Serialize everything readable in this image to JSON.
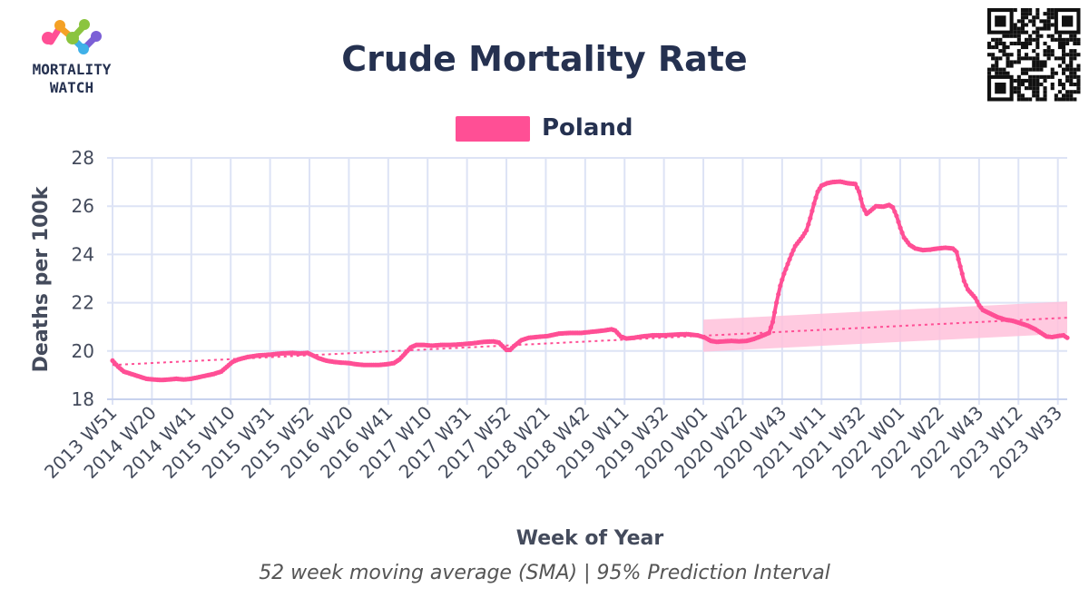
{
  "brand": {
    "line1": "MORTALITY",
    "line2": "WATCH",
    "logo_icon": "molecule-logo-icon",
    "qr_icon": "qr-code-icon"
  },
  "colors": {
    "series": "#ff4f95",
    "band": "#ffc1da",
    "grid": "#dde3f5",
    "axis": "#c8d2ee",
    "title": "#253150"
  },
  "chart_data": {
    "type": "line",
    "title": "Crude Mortality Rate",
    "subtitle": "52 week moving average (SMA) | 95% Prediction Interval",
    "xlabel": "Week of Year",
    "ylabel": "Deaths per 100k",
    "ylim": [
      18,
      28
    ],
    "yticks": [
      18,
      20,
      22,
      24,
      26,
      28
    ],
    "legend": [
      {
        "name": "Poland",
        "color": "#ff4f95"
      }
    ],
    "x_range_weeks": [
      0,
      509
    ],
    "xticks": [
      {
        "week": 0,
        "label": "2013 W51"
      },
      {
        "week": 21,
        "label": "2014 W20"
      },
      {
        "week": 42,
        "label": "2014 W41"
      },
      {
        "week": 63,
        "label": "2015 W10"
      },
      {
        "week": 84,
        "label": "2015 W31"
      },
      {
        "week": 105,
        "label": "2015 W52"
      },
      {
        "week": 126,
        "label": "2016 W20"
      },
      {
        "week": 147,
        "label": "2016 W41"
      },
      {
        "week": 168,
        "label": "2017 W10"
      },
      {
        "week": 189,
        "label": "2017 W31"
      },
      {
        "week": 210,
        "label": "2017 W52"
      },
      {
        "week": 231,
        "label": "2018 W21"
      },
      {
        "week": 252,
        "label": "2018 W42"
      },
      {
        "week": 273,
        "label": "2019 W11"
      },
      {
        "week": 294,
        "label": "2019 W32"
      },
      {
        "week": 315,
        "label": "2020 W01"
      },
      {
        "week": 336,
        "label": "2020 W22"
      },
      {
        "week": 357,
        "label": "2020 W43"
      },
      {
        "week": 378,
        "label": "2021 W11"
      },
      {
        "week": 399,
        "label": "2021 W32"
      },
      {
        "week": 420,
        "label": "2022 W01"
      },
      {
        "week": 441,
        "label": "2022 W22"
      },
      {
        "week": 462,
        "label": "2022 W43"
      },
      {
        "week": 483,
        "label": "2023 W12"
      },
      {
        "week": 504,
        "label": "2023 W33"
      }
    ],
    "series": [
      {
        "name": "Poland",
        "points": [
          [
            0,
            19.6
          ],
          [
            3,
            19.35
          ],
          [
            6,
            19.15
          ],
          [
            10,
            19.05
          ],
          [
            14,
            18.95
          ],
          [
            18,
            18.85
          ],
          [
            22,
            18.82
          ],
          [
            26,
            18.8
          ],
          [
            30,
            18.82
          ],
          [
            34,
            18.85
          ],
          [
            38,
            18.82
          ],
          [
            42,
            18.85
          ],
          [
            48,
            18.95
          ],
          [
            54,
            19.05
          ],
          [
            58,
            19.15
          ],
          [
            61,
            19.35
          ],
          [
            64,
            19.55
          ],
          [
            67,
            19.65
          ],
          [
            72,
            19.75
          ],
          [
            78,
            19.82
          ],
          [
            84,
            19.85
          ],
          [
            90,
            19.9
          ],
          [
            96,
            19.92
          ],
          [
            100,
            19.9
          ],
          [
            104,
            19.92
          ],
          [
            106,
            19.85
          ],
          [
            110,
            19.7
          ],
          [
            114,
            19.6
          ],
          [
            118,
            19.55
          ],
          [
            122,
            19.52
          ],
          [
            126,
            19.5
          ],
          [
            130,
            19.45
          ],
          [
            134,
            19.42
          ],
          [
            138,
            19.42
          ],
          [
            142,
            19.42
          ],
          [
            146,
            19.45
          ],
          [
            150,
            19.5
          ],
          [
            153,
            19.65
          ],
          [
            156,
            19.9
          ],
          [
            159,
            20.15
          ],
          [
            162,
            20.25
          ],
          [
            166,
            20.25
          ],
          [
            170,
            20.22
          ],
          [
            175,
            20.25
          ],
          [
            180,
            20.25
          ],
          [
            186,
            20.28
          ],
          [
            192,
            20.32
          ],
          [
            198,
            20.38
          ],
          [
            203,
            20.4
          ],
          [
            206,
            20.35
          ],
          [
            208,
            20.2
          ],
          [
            210,
            20.05
          ],
          [
            212,
            20.05
          ],
          [
            214,
            20.2
          ],
          [
            218,
            20.45
          ],
          [
            222,
            20.55
          ],
          [
            226,
            20.58
          ],
          [
            232,
            20.62
          ],
          [
            238,
            20.72
          ],
          [
            244,
            20.75
          ],
          [
            250,
            20.75
          ],
          [
            256,
            20.8
          ],
          [
            262,
            20.85
          ],
          [
            266,
            20.9
          ],
          [
            268,
            20.85
          ],
          [
            271,
            20.6
          ],
          [
            274,
            20.52
          ],
          [
            278,
            20.55
          ],
          [
            282,
            20.6
          ],
          [
            288,
            20.65
          ],
          [
            294,
            20.65
          ],
          [
            300,
            20.68
          ],
          [
            306,
            20.7
          ],
          [
            312,
            20.65
          ],
          [
            316,
            20.55
          ],
          [
            319,
            20.42
          ],
          [
            322,
            20.38
          ],
          [
            326,
            20.4
          ],
          [
            330,
            20.42
          ],
          [
            334,
            20.4
          ],
          [
            338,
            20.42
          ],
          [
            342,
            20.5
          ],
          [
            346,
            20.62
          ],
          [
            350,
            20.75
          ],
          [
            352,
            21.2
          ],
          [
            354,
            22.0
          ],
          [
            356,
            22.7
          ],
          [
            358,
            23.2
          ],
          [
            360,
            23.6
          ],
          [
            362,
            24.0
          ],
          [
            364,
            24.35
          ],
          [
            366,
            24.55
          ],
          [
            368,
            24.75
          ],
          [
            370,
            25.0
          ],
          [
            372,
            25.5
          ],
          [
            374,
            26.1
          ],
          [
            376,
            26.6
          ],
          [
            378,
            26.85
          ],
          [
            381,
            26.95
          ],
          [
            384,
            27.0
          ],
          [
            388,
            27.02
          ],
          [
            392,
            26.95
          ],
          [
            396,
            26.92
          ],
          [
            398,
            26.6
          ],
          [
            400,
            26.0
          ],
          [
            402,
            25.68
          ],
          [
            404,
            25.8
          ],
          [
            407,
            26.0
          ],
          [
            411,
            25.98
          ],
          [
            414,
            26.05
          ],
          [
            416,
            25.95
          ],
          [
            418,
            25.6
          ],
          [
            420,
            25.1
          ],
          [
            422,
            24.7
          ],
          [
            425,
            24.4
          ],
          [
            428,
            24.25
          ],
          [
            432,
            24.18
          ],
          [
            436,
            24.2
          ],
          [
            440,
            24.25
          ],
          [
            444,
            24.28
          ],
          [
            448,
            24.25
          ],
          [
            450,
            24.1
          ],
          [
            452,
            23.5
          ],
          [
            454,
            22.9
          ],
          [
            456,
            22.55
          ],
          [
            460,
            22.2
          ],
          [
            462,
            21.9
          ],
          [
            464,
            21.7
          ],
          [
            468,
            21.55
          ],
          [
            472,
            21.4
          ],
          [
            476,
            21.3
          ],
          [
            480,
            21.25
          ],
          [
            484,
            21.15
          ],
          [
            488,
            21.05
          ],
          [
            492,
            20.9
          ],
          [
            495,
            20.75
          ],
          [
            498,
            20.6
          ],
          [
            501,
            20.58
          ],
          [
            504,
            20.62
          ],
          [
            507,
            20.65
          ],
          [
            509,
            20.55
          ]
        ]
      }
    ],
    "trend": {
      "start_week": 0,
      "start_value": 19.42,
      "end_week": 509,
      "end_value": 21.38
    },
    "prediction_interval": {
      "start_week": 315,
      "end_week": 509,
      "upper": [
        21.3,
        22.05
      ],
      "lower": [
        19.97,
        20.72
      ]
    }
  }
}
